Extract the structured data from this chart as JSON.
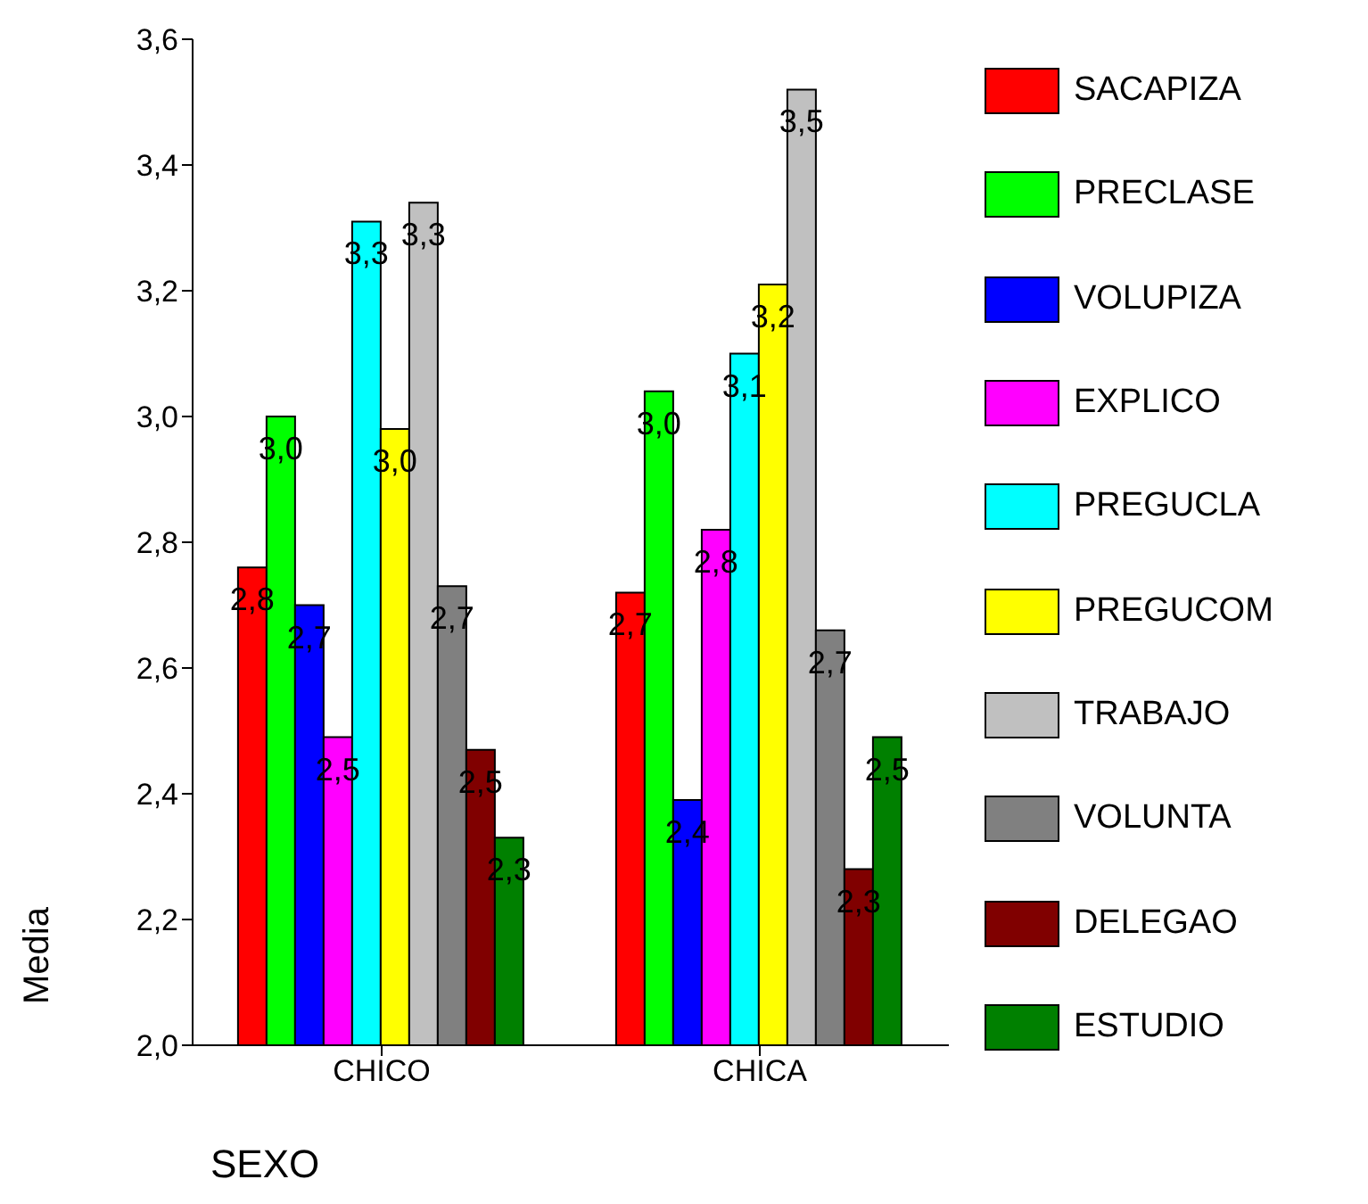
{
  "chart_data": {
    "type": "bar",
    "xlabel": "SEXO",
    "ylabel": "Media",
    "categories": [
      "CHICO",
      "CHICA"
    ],
    "series": [
      {
        "name": "SACAPIZA",
        "color": "#ff0000",
        "values": [
          2.76,
          2.72
        ],
        "value_labels": [
          "2,8",
          "2,7"
        ]
      },
      {
        "name": "PRECLASE",
        "color": "#00ff00",
        "values": [
          3.0,
          3.04
        ],
        "value_labels": [
          "3,0",
          "3,0"
        ]
      },
      {
        "name": "VOLUPIZA",
        "color": "#0000ff",
        "values": [
          2.7,
          2.39
        ],
        "value_labels": [
          "2,7",
          "2,4"
        ]
      },
      {
        "name": "EXPLICO",
        "color": "#ff00ff",
        "values": [
          2.49,
          2.82
        ],
        "value_labels": [
          "2,5",
          "2,8"
        ]
      },
      {
        "name": "PREGUCLA",
        "color": "#00ffff",
        "values": [
          3.31,
          3.1
        ],
        "value_labels": [
          "3,3",
          "3,1"
        ]
      },
      {
        "name": "PREGUCOM",
        "color": "#ffff00",
        "values": [
          2.98,
          3.21
        ],
        "value_labels": [
          "3,0",
          "3,2"
        ]
      },
      {
        "name": "TRABAJO",
        "color": "#c0c0c0",
        "values": [
          3.34,
          3.52
        ],
        "value_labels": [
          "3,3",
          "3,5"
        ]
      },
      {
        "name": "VOLUNTA",
        "color": "#808080",
        "values": [
          2.73,
          2.66
        ],
        "value_labels": [
          "2,7",
          "2,7"
        ]
      },
      {
        "name": "DELEGAO",
        "color": "#800000",
        "values": [
          2.47,
          2.28
        ],
        "value_labels": [
          "2,5",
          "2,3"
        ]
      },
      {
        "name": "ESTUDIO",
        "color": "#008000",
        "values": [
          2.33,
          2.49
        ],
        "value_labels": [
          "2,3",
          "2,5"
        ]
      }
    ],
    "ylim": [
      2.0,
      3.6
    ],
    "yticks": [
      {
        "value": 2.0,
        "label": "2,0"
      },
      {
        "value": 2.2,
        "label": "2,2"
      },
      {
        "value": 2.4,
        "label": "2,4"
      },
      {
        "value": 2.6,
        "label": "2,6"
      },
      {
        "value": 2.8,
        "label": "2,8"
      },
      {
        "value": 3.0,
        "label": "3,0"
      },
      {
        "value": 3.2,
        "label": "3,2"
      },
      {
        "value": 3.4,
        "label": "3,4"
      },
      {
        "value": 3.6,
        "label": "3,6"
      }
    ],
    "grid": false,
    "legend": "right"
  }
}
